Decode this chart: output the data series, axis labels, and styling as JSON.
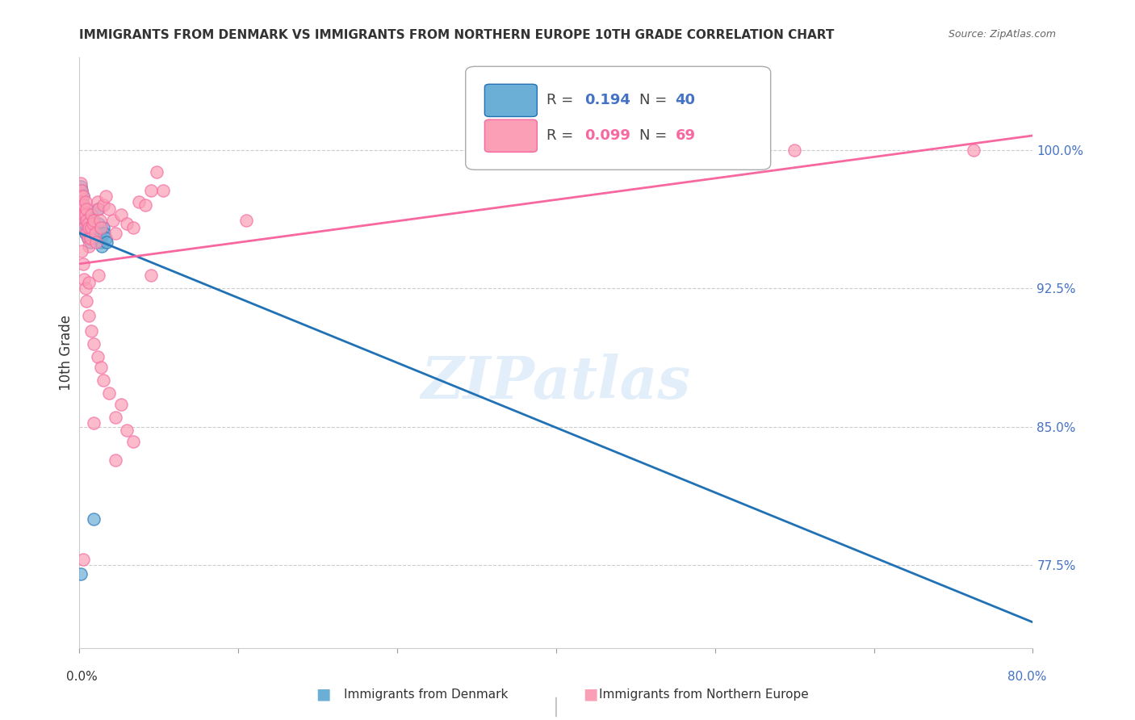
{
  "title": "IMMIGRANTS FROM DENMARK VS IMMIGRANTS FROM NORTHERN EUROPE 10TH GRADE CORRELATION CHART",
  "source": "Source: ZipAtlas.com",
  "ylabel": "10th Grade",
  "right_ytick_labels": [
    "77.5%",
    "85.0%",
    "92.5%",
    "100.0%"
  ],
  "right_ytick_values": [
    0.775,
    0.85,
    0.925,
    1.0
  ],
  "xmin": 0.0,
  "xmax": 0.8,
  "ymin": 0.73,
  "ymax": 1.05,
  "blue_color": "#6baed6",
  "pink_color": "#fa9fb5",
  "blue_line_color": "#2171b5",
  "pink_line_color": "#f768a1",
  "R_blue": 0.194,
  "N_blue": 40,
  "R_pink": 0.099,
  "N_pink": 69,
  "watermark": "ZIPatlas",
  "legend_label_blue": "Immigrants from Denmark",
  "legend_label_pink": "Immigrants from Northern Europe",
  "blue_scatter_x": [
    0.001,
    0.001,
    0.001,
    0.002,
    0.002,
    0.002,
    0.002,
    0.003,
    0.003,
    0.003,
    0.003,
    0.004,
    0.004,
    0.004,
    0.005,
    0.005,
    0.005,
    0.006,
    0.006,
    0.007,
    0.007,
    0.008,
    0.009,
    0.01,
    0.01,
    0.011,
    0.012,
    0.013,
    0.014,
    0.015,
    0.016,
    0.017,
    0.018,
    0.019,
    0.02,
    0.021,
    0.022,
    0.023,
    0.001,
    0.012
  ],
  "blue_scatter_y": [
    0.98,
    0.975,
    0.97,
    0.978,
    0.972,
    0.968,
    0.965,
    0.975,
    0.97,
    0.965,
    0.96,
    0.968,
    0.962,
    0.958,
    0.965,
    0.96,
    0.955,
    0.962,
    0.958,
    0.958,
    0.952,
    0.955,
    0.95,
    0.965,
    0.958,
    0.962,
    0.96,
    0.958,
    0.955,
    0.968,
    0.96,
    0.955,
    0.95,
    0.948,
    0.958,
    0.955,
    0.952,
    0.95,
    0.77,
    0.8
  ],
  "pink_scatter_x": [
    0.001,
    0.001,
    0.002,
    0.002,
    0.002,
    0.003,
    0.003,
    0.003,
    0.004,
    0.004,
    0.004,
    0.005,
    0.005,
    0.006,
    0.006,
    0.006,
    0.007,
    0.007,
    0.008,
    0.008,
    0.009,
    0.01,
    0.01,
    0.011,
    0.012,
    0.013,
    0.014,
    0.015,
    0.016,
    0.017,
    0.018,
    0.02,
    0.022,
    0.025,
    0.028,
    0.03,
    0.035,
    0.04,
    0.045,
    0.05,
    0.055,
    0.06,
    0.065,
    0.07,
    0.002,
    0.003,
    0.004,
    0.005,
    0.006,
    0.008,
    0.01,
    0.012,
    0.015,
    0.018,
    0.02,
    0.025,
    0.03,
    0.035,
    0.04,
    0.045,
    0.016,
    0.012,
    0.06,
    0.03,
    0.14,
    0.6,
    0.75,
    0.003,
    0.008
  ],
  "pink_scatter_y": [
    0.982,
    0.975,
    0.978,
    0.972,
    0.965,
    0.975,
    0.968,
    0.962,
    0.97,
    0.965,
    0.958,
    0.972,
    0.965,
    0.968,
    0.962,
    0.955,
    0.96,
    0.952,
    0.958,
    0.948,
    0.952,
    0.965,
    0.958,
    0.96,
    0.962,
    0.955,
    0.95,
    0.972,
    0.968,
    0.962,
    0.958,
    0.97,
    0.975,
    0.968,
    0.962,
    0.955,
    0.965,
    0.96,
    0.958,
    0.972,
    0.97,
    0.978,
    0.988,
    0.978,
    0.945,
    0.938,
    0.93,
    0.925,
    0.918,
    0.91,
    0.902,
    0.895,
    0.888,
    0.882,
    0.875,
    0.868,
    0.855,
    0.862,
    0.848,
    0.842,
    0.932,
    0.852,
    0.932,
    0.832,
    0.962,
    1.0,
    1.0,
    0.778,
    0.928
  ]
}
